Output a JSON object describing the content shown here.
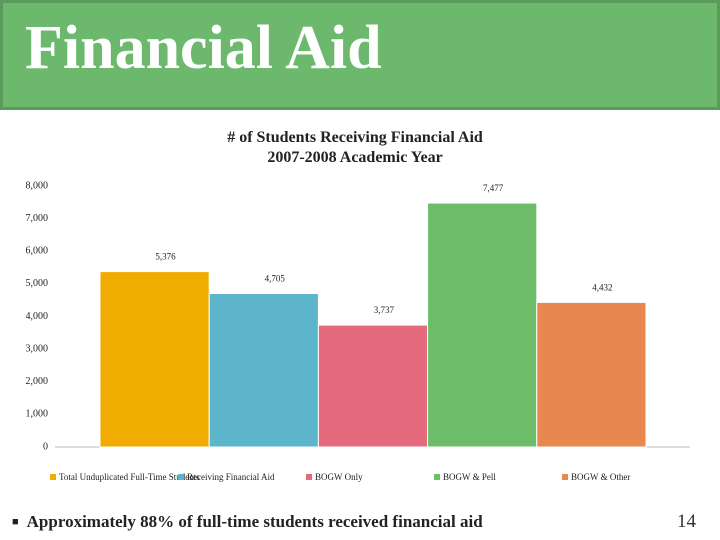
{
  "header": {
    "title": "Financial Aid"
  },
  "chart_data": {
    "type": "bar",
    "title": "# of Students Receiving Financial Aid",
    "subtitle": "2007-2008 Academic Year",
    "series": [
      {
        "name": "Total Unduplicated Full-Time Students",
        "color": "#f0ac00",
        "values": [
          5376
        ],
        "value_labels": [
          "5,376"
        ]
      },
      {
        "name": "Receiving Financial Aid",
        "color": "#5db5cc",
        "values": [
          4705
        ],
        "value_labels": [
          "4,705"
        ]
      },
      {
        "name": "BOGW Only",
        "color": "#e46a7e",
        "values": [
          3737
        ],
        "value_labels": [
          "3,737"
        ]
      },
      {
        "name": "BOGW & Pell",
        "color": "#6cbc6a",
        "values": [
          7477
        ],
        "value_labels": [
          "7,477"
        ]
      },
      {
        "name": "BOGW & Other",
        "color": "#e8874f",
        "values": [
          4432
        ],
        "value_labels": [
          "4,432"
        ]
      }
    ],
    "ylim": [
      0,
      8000
    ],
    "yticks": [
      0,
      {
        "value": 1000,
        "label": "1,000"
      },
      {
        "value": 2000,
        "label": "2,000"
      },
      {
        "value": 3000,
        "label": "3,000"
      },
      {
        "value": 4000,
        "label": "4,000"
      },
      {
        "value": 5000,
        "label": "5,000"
      },
      {
        "value": 6000,
        "label": "6,000"
      },
      {
        "value": 7000,
        "label": "7,000"
      },
      {
        "value": 8000,
        "label": "8,000"
      }
    ],
    "legend": "bottom"
  },
  "footer": {
    "bullet": "Approximately 88% of full-time students received financial aid",
    "page_number": "14"
  }
}
